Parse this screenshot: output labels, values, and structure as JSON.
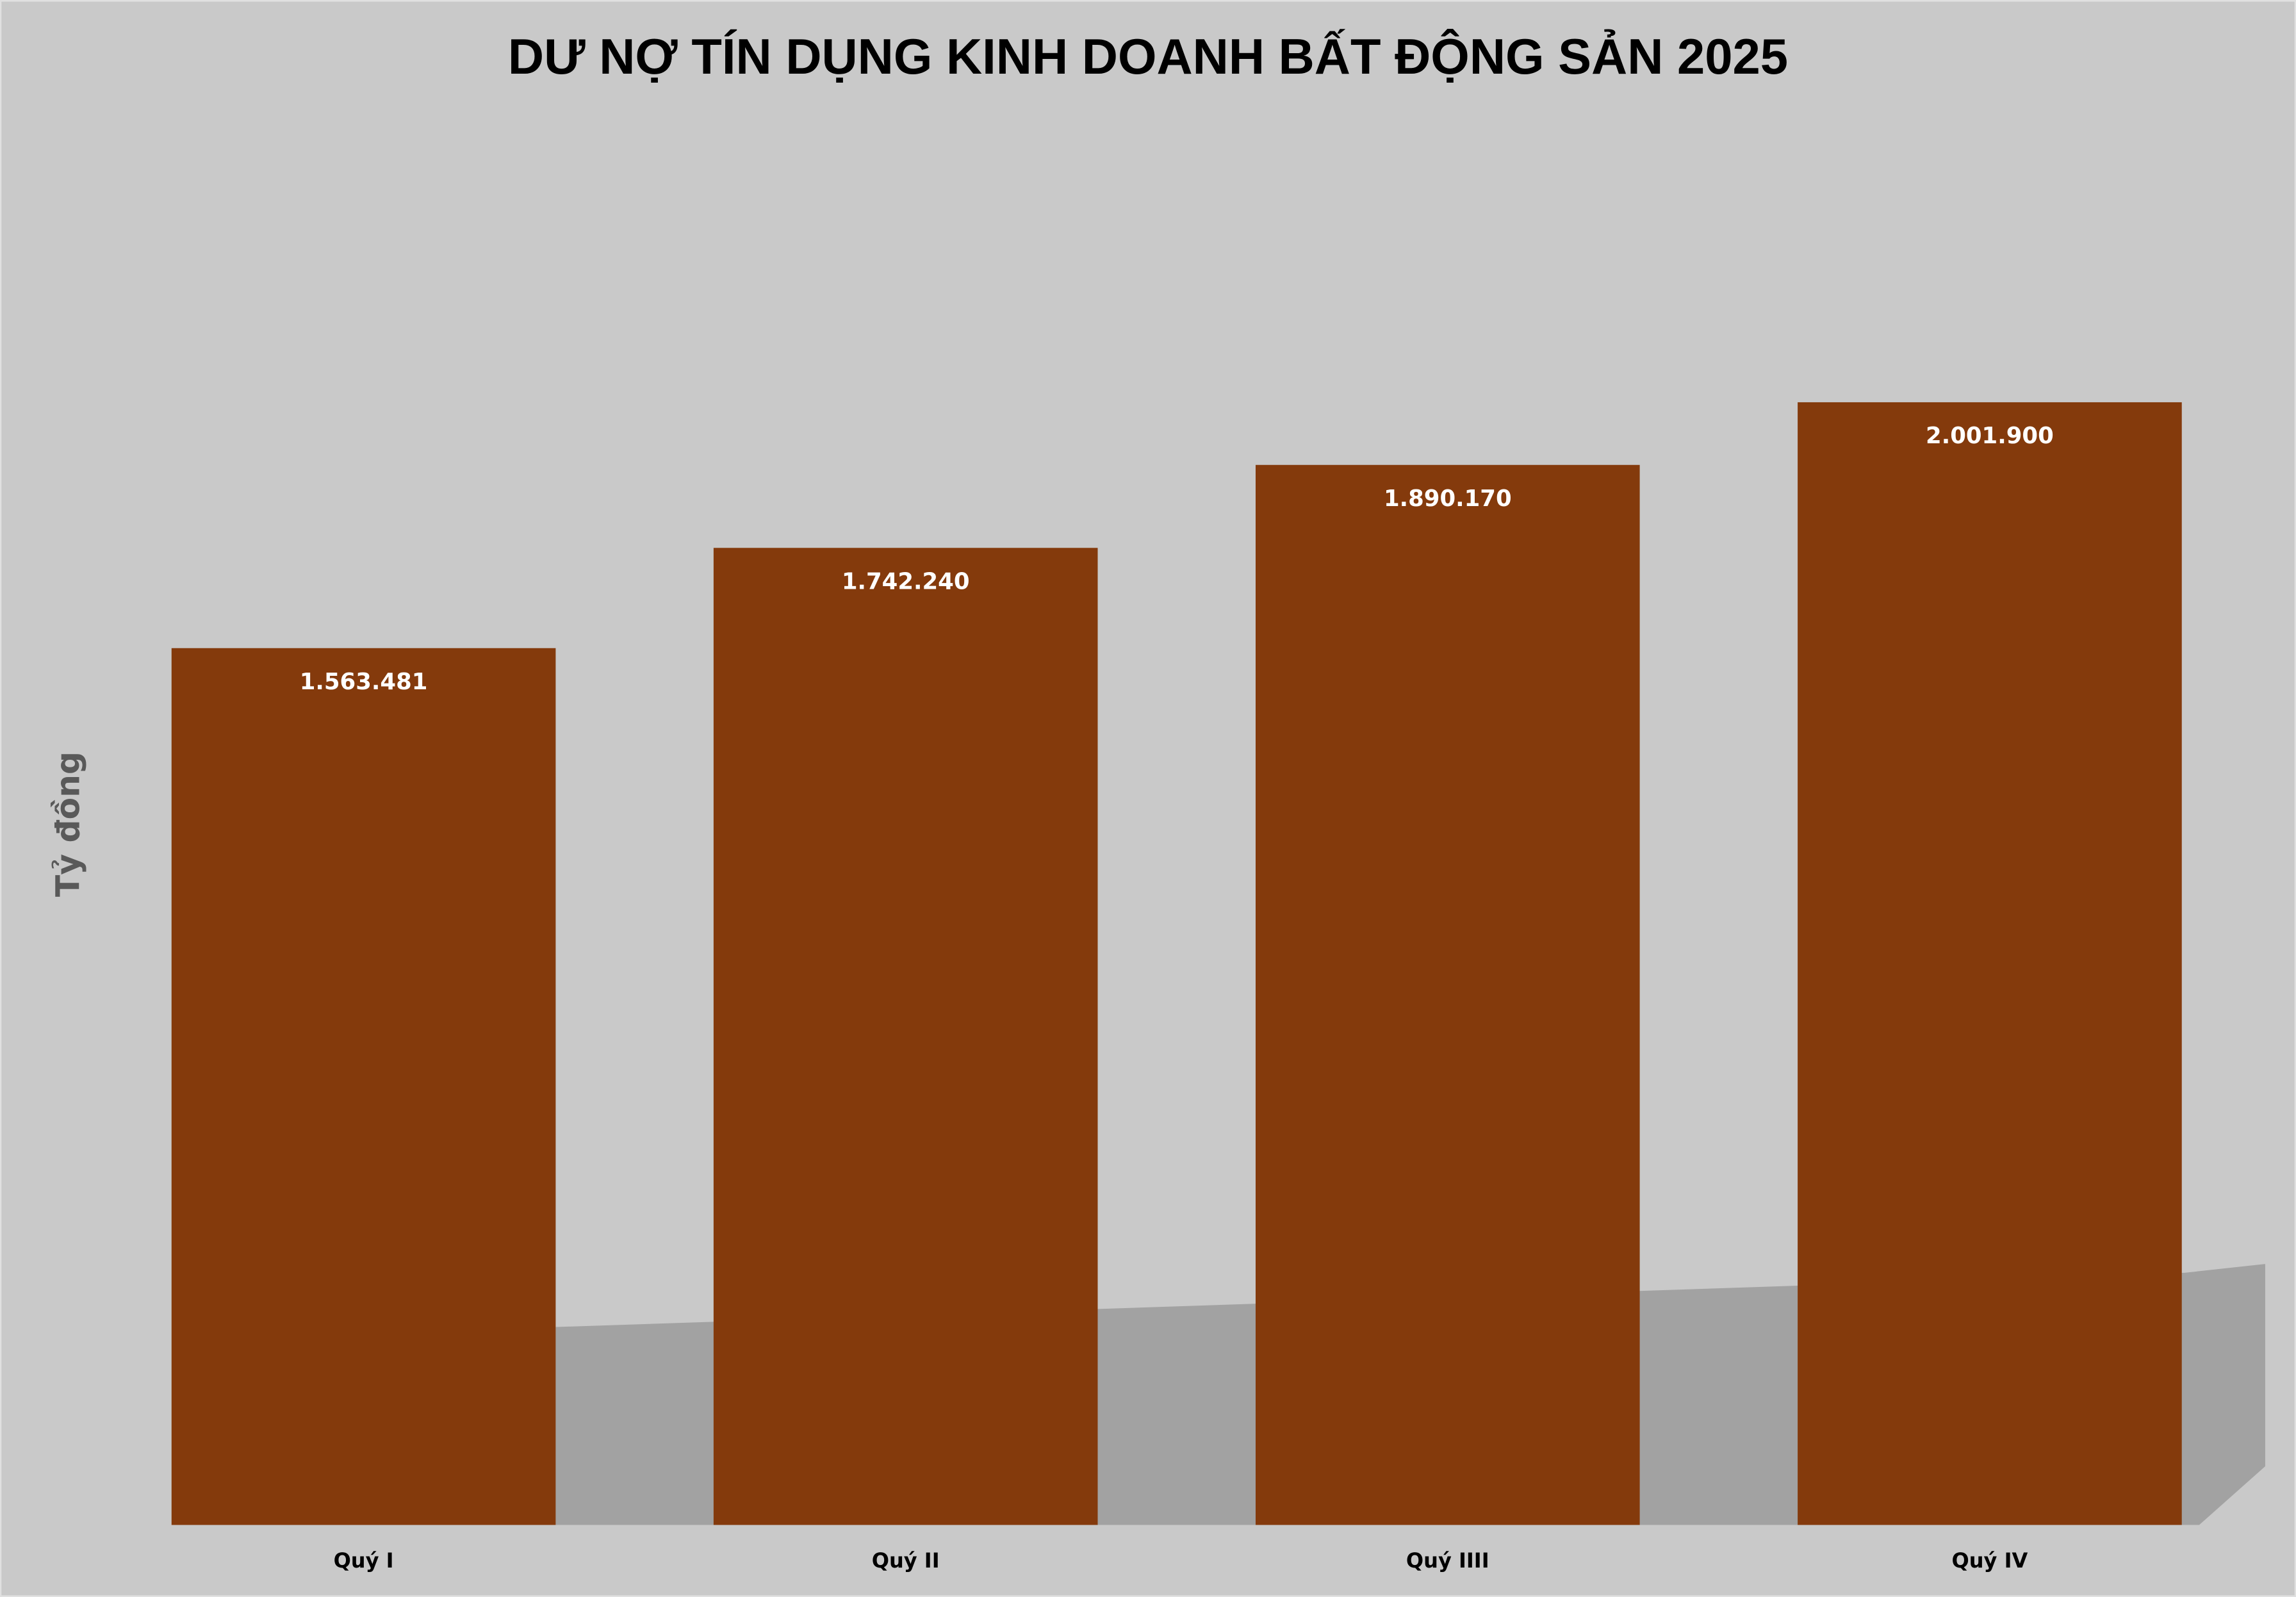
{
  "chart_data": {
    "type": "bar",
    "title": "DƯ NỢ TÍN DỤNG KINH DOANH BẤT ĐỘNG SẢN 2025",
    "xlabel": "",
    "ylabel": "Tỷ đồng",
    "categories": [
      "Quý I",
      "Quý II",
      "Quý IIII",
      "Quý IV"
    ],
    "values": [
      1563481,
      1742240,
      1890170,
      2001900
    ],
    "data_labels": [
      "1.563.481",
      "1.742.240",
      "1.890.170",
      "2.001.900"
    ],
    "ylim": [
      0,
      2718800
    ],
    "grid": false,
    "legend": "none",
    "colors": {
      "bar": "#843A0C",
      "background": "#C9C9C9",
      "shadow": "#A2A2A2",
      "ylabel": "#595959"
    }
  }
}
